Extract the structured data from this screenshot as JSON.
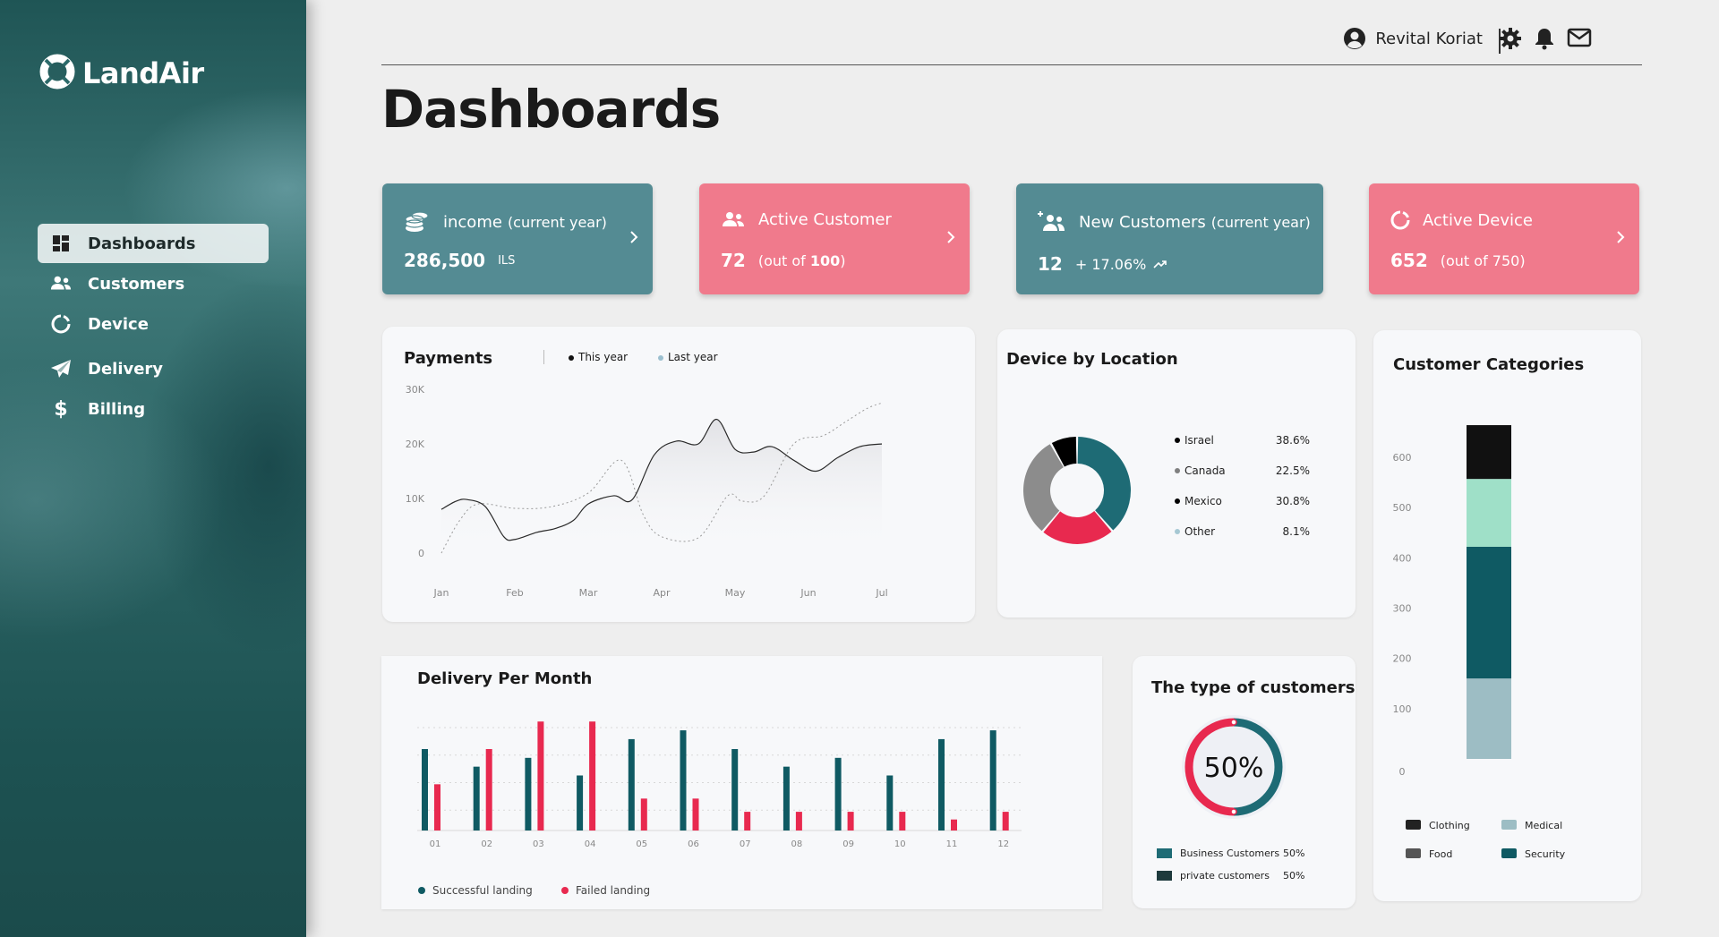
{
  "brand": {
    "name": "LandAir"
  },
  "sidebar": {
    "items": [
      {
        "label": "Dashboards",
        "icon": "grid-icon",
        "active": true
      },
      {
        "label": "Customers",
        "icon": "users-icon"
      },
      {
        "label": "Device",
        "icon": "device-ring-icon"
      },
      {
        "label": "Delivery",
        "icon": "paper-plane-icon"
      },
      {
        "label": "Billing",
        "icon": "dollar-icon"
      }
    ]
  },
  "header": {
    "user_name": "Revital Koriat",
    "icons": [
      "user-circle-icon",
      "gear-icon",
      "bell-icon",
      "mail-icon"
    ]
  },
  "page": {
    "title": "Dashboards"
  },
  "kpis": [
    {
      "title": "income",
      "qualifier": "(current year)",
      "value": "286,500",
      "sub": "ILS",
      "color": "#548b93"
    },
    {
      "title": "Active Customer",
      "qualifier": "",
      "value": "72",
      "sub_prefix": "(out of ",
      "sub_bold": "100",
      "sub_suffix": ")",
      "color": "#f07a8c"
    },
    {
      "title": "New Customers",
      "qualifier": "(current year)",
      "value": "12",
      "sub": "+ 17.06%",
      "color": "#548b93"
    },
    {
      "title": "Active Device",
      "qualifier": "",
      "value": "652",
      "sub": "(out of 750)",
      "color": "#f07a8c"
    }
  ],
  "payments": {
    "title": "Payments",
    "legend": [
      "This year",
      "Last year"
    ],
    "chart_data": {
      "type": "line",
      "x": [
        "Jan",
        "Feb",
        "Mar",
        "Apr",
        "May",
        "Jun",
        "Jul"
      ],
      "y_ticks": [
        "30K",
        "20K",
        "10K",
        "0"
      ],
      "ylim": [
        0,
        30000
      ],
      "series": [
        {
          "name": "This year",
          "x": [
            0,
            0.2,
            0.35,
            0.6,
            0.85,
            1.0,
            1.3,
            1.55,
            1.8,
            2.0,
            2.35,
            2.6,
            2.9,
            3.2,
            3.5,
            3.75,
            4.0,
            4.25,
            4.5,
            4.8,
            5.1,
            5.4,
            5.7,
            6.0
          ],
          "y": [
            8000,
            9500,
            9800,
            8500,
            3000,
            2500,
            3800,
            4500,
            6000,
            9000,
            10500,
            9800,
            18000,
            20500,
            20000,
            24500,
            19000,
            18500,
            19500,
            17000,
            15000,
            17500,
            19500,
            20000
          ]
        },
        {
          "name": "Last year",
          "x": [
            0,
            0.25,
            0.5,
            1.0,
            1.5,
            2.0,
            2.45,
            2.75,
            3.0,
            3.5,
            3.9,
            4.1,
            4.4,
            4.8,
            5.2,
            5.5,
            5.8,
            6.0
          ],
          "y": [
            0,
            6000,
            9000,
            8200,
            8500,
            11000,
            17000,
            7000,
            3000,
            2800,
            10500,
            9500,
            10500,
            20000,
            21500,
            24000,
            26500,
            27500
          ]
        }
      ],
      "grid": false
    }
  },
  "device_location": {
    "title": "Device  by Location",
    "chart_data": {
      "type": "pie",
      "categories": [
        "Israel",
        "Canada",
        "Mexico",
        "Other"
      ],
      "values": [
        38.6,
        22.5,
        30.8,
        8.1
      ],
      "labels": [
        "38.6%",
        "22.5%",
        "30.8%",
        "8.1%"
      ],
      "slice_colors": [
        "#1e6b75",
        "#e8294f",
        "#8c8c8c",
        "#000000"
      ],
      "legend_dot_colors": [
        "#000000",
        "#808080",
        "#000000",
        "#a6c8d3"
      ]
    }
  },
  "customer_categories": {
    "title": "Customer Categories",
    "chart_data": {
      "type": "bar",
      "stacked": true,
      "y_ticks": [
        "600",
        "500",
        "400",
        "300",
        "200",
        "100",
        "0"
      ],
      "ylim": [
        0,
        600
      ],
      "segments": [
        {
          "name": "Medical",
          "value": 160,
          "color": "#9dbdc4"
        },
        {
          "name": "Security",
          "value": 262,
          "color": "#0f5a63"
        },
        {
          "name": "Food",
          "value": 135,
          "color": "#9fe0c8"
        },
        {
          "name": "Clothing",
          "value": 107,
          "color": "#111111"
        }
      ],
      "legend": [
        {
          "name": "Clothing",
          "color": "#222222"
        },
        {
          "name": "Medical",
          "color": "#9dbdc4"
        },
        {
          "name": "Food",
          "color": "#555555"
        },
        {
          "name": "Security",
          "color": "#0f5a63"
        }
      ]
    }
  },
  "delivery": {
    "title": "Delivery Per Month",
    "chart_data": {
      "type": "bar",
      "categories": [
        "01",
        "02",
        "03",
        "04",
        "05",
        "06",
        "07",
        "08",
        "09",
        "10",
        "11",
        "12"
      ],
      "ylim": [
        0,
        100
      ],
      "series": [
        {
          "name": "Successful landing",
          "color": "#0f5a63",
          "values": [
            74,
            58,
            66,
            50,
            83,
            91,
            74,
            58,
            66,
            50,
            83,
            91
          ]
        },
        {
          "name": "Failed landing",
          "color": "#e8294f",
          "values": [
            42,
            74,
            99,
            99,
            29,
            29,
            17,
            17,
            17,
            17,
            10,
            17
          ]
        }
      ]
    }
  },
  "customer_type": {
    "title": "The type of customers",
    "center_label": "50%",
    "chart_data": {
      "type": "pie",
      "categories": [
        "Business Customers",
        "private customers"
      ],
      "values": [
        50,
        50
      ],
      "labels": [
        "50%",
        "50%"
      ],
      "colors": [
        "#1e6b75",
        "#e8294f"
      ],
      "legend_colors": [
        "#1e6b75",
        "#1e3a3d"
      ]
    }
  }
}
